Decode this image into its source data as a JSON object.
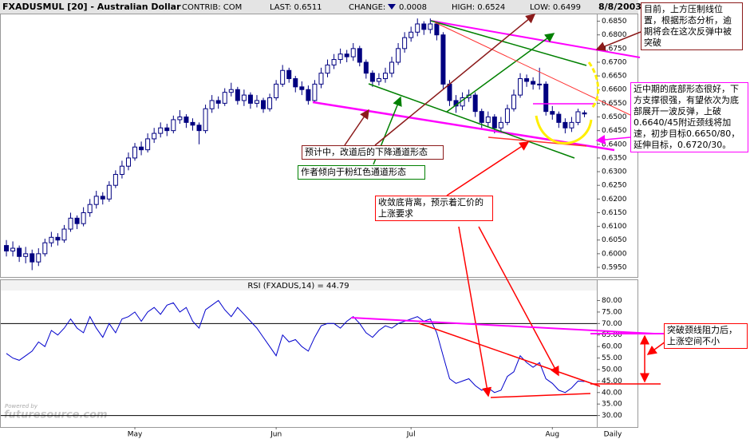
{
  "header": {
    "contrib": "CONTRIB: COM",
    "last": "LAST: 0.6511",
    "change_label": "CHANGE:",
    "change": "0.0008",
    "high": "HIGH: 0.6524",
    "low": "LOW: 0.6499",
    "date": "8/8/2003"
  },
  "watermark_caption": "Powered by",
  "watermark": "futuresource.com",
  "annotations": {
    "top_right": "目前，上方压制线位置，根据形态分析，逾期将会在这次反弹中被突破",
    "bottom_pattern": "近中期的底部形态很好，下方支撑很强，有望依次为底部展开一波反弹，上破0.6640/45附近颈线将加速，初步目标0.6650/80，延伸目标，0.6720/30。",
    "channel_forecast": "预计中，改道后的下降通道形态",
    "author_preference": "作者倾向于粉红色通道形态",
    "divergence": "收敛底背离，预示着汇价的上涨要求",
    "breakout": "突破颈线阻力后，上涨空间不小"
  },
  "chart_data": [
    {
      "type": "candlestick",
      "title": "FXADUSMUL [20] - Australian Dollar",
      "color": "#000080",
      "up_fill": "#ffffff",
      "open": [
        0.603,
        0.601,
        0.602,
        0.599,
        0.6,
        0.597,
        0.6,
        0.604,
        0.606,
        0.605,
        0.609,
        0.613,
        0.611,
        0.615,
        0.618,
        0.621,
        0.62,
        0.625,
        0.629,
        0.632,
        0.635,
        0.639,
        0.638,
        0.642,
        0.644,
        0.646,
        0.645,
        0.649,
        0.65,
        0.648,
        0.647,
        0.645,
        0.653,
        0.656,
        0.655,
        0.659,
        0.66,
        0.656,
        0.658,
        0.655,
        0.656,
        0.653,
        0.657,
        0.662,
        0.667,
        0.664,
        0.661,
        0.66,
        0.656,
        0.662,
        0.666,
        0.669,
        0.671,
        0.673,
        0.672,
        0.675,
        0.67,
        0.666,
        0.663,
        0.664,
        0.666,
        0.67,
        0.675,
        0.679,
        0.681,
        0.684,
        0.682,
        0.684,
        0.68,
        0.662,
        0.656,
        0.654,
        0.657,
        0.658,
        0.652,
        0.648,
        0.65,
        0.646,
        0.648,
        0.653,
        0.658,
        0.664,
        0.663,
        0.662,
        0.662,
        0.652,
        0.651,
        0.648,
        0.646,
        0.648,
        0.6515
      ],
      "high": [
        0.605,
        0.6045,
        0.603,
        0.6025,
        0.6015,
        0.602,
        0.6055,
        0.608,
        0.6075,
        0.6105,
        0.615,
        0.614,
        0.617,
        0.62,
        0.623,
        0.6225,
        0.6265,
        0.6305,
        0.634,
        0.637,
        0.6405,
        0.641,
        0.644,
        0.646,
        0.648,
        0.6475,
        0.6505,
        0.6525,
        0.651,
        0.6495,
        0.648,
        0.6545,
        0.658,
        0.6575,
        0.6605,
        0.6625,
        0.661,
        0.66,
        0.659,
        0.658,
        0.657,
        0.6585,
        0.6635,
        0.669,
        0.668,
        0.665,
        0.663,
        0.6615,
        0.6635,
        0.668,
        0.671,
        0.673,
        0.675,
        0.6745,
        0.677,
        0.676,
        0.671,
        0.667,
        0.666,
        0.668,
        0.672,
        0.677,
        0.681,
        0.683,
        0.686,
        0.685,
        0.686,
        0.685,
        0.681,
        0.6635,
        0.658,
        0.659,
        0.66,
        0.659,
        0.653,
        0.652,
        0.651,
        0.65,
        0.6545,
        0.66,
        0.666,
        0.6655,
        0.6645,
        0.668,
        0.663,
        0.654,
        0.652,
        0.6495,
        0.65,
        0.653,
        0.6524
      ],
      "low": [
        0.599,
        0.599,
        0.597,
        0.5965,
        0.594,
        0.5955,
        0.599,
        0.6025,
        0.603,
        0.604,
        0.608,
        0.609,
        0.61,
        0.6135,
        0.6165,
        0.618,
        0.619,
        0.624,
        0.6275,
        0.6305,
        0.634,
        0.636,
        0.637,
        0.6405,
        0.6425,
        0.643,
        0.644,
        0.6475,
        0.646,
        0.645,
        0.64,
        0.644,
        0.6515,
        0.653,
        0.654,
        0.6575,
        0.6545,
        0.654,
        0.653,
        0.6535,
        0.6515,
        0.652,
        0.656,
        0.661,
        0.6625,
        0.659,
        0.658,
        0.6545,
        0.655,
        0.6605,
        0.6645,
        0.6675,
        0.6695,
        0.67,
        0.6705,
        0.6685,
        0.664,
        0.661,
        0.6615,
        0.6625,
        0.6645,
        0.669,
        0.6735,
        0.6775,
        0.6795,
        0.68,
        0.6805,
        0.678,
        0.66,
        0.654,
        0.6515,
        0.6525,
        0.6555,
        0.65,
        0.646,
        0.6465,
        0.644,
        0.6445,
        0.647,
        0.652,
        0.657,
        0.661,
        0.66,
        0.66,
        0.6505,
        0.649,
        0.646,
        0.644,
        0.6445,
        0.647,
        0.6499
      ],
      "close": [
        0.601,
        0.602,
        0.599,
        0.6,
        0.597,
        0.6,
        0.604,
        0.606,
        0.605,
        0.609,
        0.613,
        0.611,
        0.615,
        0.618,
        0.621,
        0.62,
        0.625,
        0.629,
        0.632,
        0.635,
        0.639,
        0.638,
        0.642,
        0.644,
        0.646,
        0.645,
        0.649,
        0.65,
        0.648,
        0.647,
        0.645,
        0.653,
        0.656,
        0.655,
        0.659,
        0.66,
        0.656,
        0.658,
        0.655,
        0.656,
        0.653,
        0.657,
        0.662,
        0.667,
        0.664,
        0.661,
        0.66,
        0.656,
        0.662,
        0.666,
        0.669,
        0.671,
        0.673,
        0.672,
        0.675,
        0.67,
        0.666,
        0.663,
        0.664,
        0.666,
        0.67,
        0.675,
        0.679,
        0.681,
        0.684,
        0.682,
        0.684,
        0.68,
        0.662,
        0.656,
        0.654,
        0.657,
        0.658,
        0.652,
        0.648,
        0.65,
        0.646,
        0.648,
        0.653,
        0.658,
        0.664,
        0.663,
        0.662,
        0.662,
        0.652,
        0.651,
        0.648,
        0.646,
        0.648,
        0.6519,
        0.6511
      ],
      "ylim": [
        0.5915,
        0.6875
      ],
      "yticks": [
        {
          "value": 0.595,
          "label": "0.5950"
        },
        {
          "value": 0.6,
          "label": "0.6000"
        },
        {
          "value": 0.605,
          "label": "0.6050"
        },
        {
          "value": 0.61,
          "label": "0.6100"
        },
        {
          "value": 0.615,
          "label": "0.6150"
        },
        {
          "value": 0.62,
          "label": "0.6200"
        },
        {
          "value": 0.625,
          "label": "0.6250"
        },
        {
          "value": 0.63,
          "label": "0.6300"
        },
        {
          "value": 0.635,
          "label": "0.6350"
        },
        {
          "value": 0.64,
          "label": "0.6400"
        },
        {
          "value": 0.645,
          "label": "0.6450"
        },
        {
          "value": 0.65,
          "label": "0.6500"
        },
        {
          "value": 0.655,
          "label": "0.6550"
        },
        {
          "value": 0.66,
          "label": "0.6600"
        },
        {
          "value": 0.665,
          "label": "0.6650"
        },
        {
          "value": 0.67,
          "label": "0.6700"
        },
        {
          "value": 0.675,
          "label": "0.6750"
        },
        {
          "value": 0.68,
          "label": "0.6800"
        },
        {
          "value": 0.685,
          "label": "0.6850"
        }
      ]
    },
    {
      "type": "line",
      "title": "RSI (FXADUS,14) = 44.79",
      "x_label": "Daily",
      "categories": [
        null,
        null,
        null,
        null,
        null,
        null,
        null,
        null,
        null,
        null,
        null,
        null,
        null,
        null,
        null,
        null,
        null,
        null,
        null,
        null,
        "May",
        null,
        null,
        null,
        null,
        null,
        null,
        null,
        null,
        null,
        null,
        null,
        null,
        null,
        null,
        null,
        null,
        null,
        null,
        null,
        null,
        null,
        "Jun",
        null,
        null,
        null,
        null,
        null,
        null,
        null,
        null,
        null,
        null,
        null,
        null,
        null,
        null,
        null,
        null,
        null,
        null,
        null,
        null,
        "Jul",
        null,
        null,
        null,
        null,
        null,
        null,
        null,
        null,
        null,
        null,
        null,
        null,
        null,
        null,
        null,
        null,
        null,
        null,
        null,
        null,
        null,
        "Aug",
        null,
        null,
        null,
        null,
        null
      ],
      "series": [
        {
          "color": "#0000cc",
          "values": [
            57,
            55,
            54,
            56,
            58,
            62,
            60,
            67,
            65,
            68,
            72,
            68,
            66,
            73,
            68,
            64,
            70,
            66,
            72,
            73,
            75,
            71,
            75,
            77,
            74,
            78,
            79,
            75,
            77,
            71,
            68,
            76,
            78,
            80,
            76,
            73,
            77,
            74,
            71,
            68,
            64,
            60,
            56,
            65,
            62,
            63,
            60,
            58,
            64,
            69,
            70,
            70,
            68,
            71,
            73,
            70,
            66,
            64,
            67,
            69,
            68,
            70,
            71,
            72,
            73,
            71,
            72,
            66,
            56,
            46,
            44,
            45,
            46,
            43,
            41,
            42,
            40,
            41,
            47,
            49,
            56,
            53,
            51,
            53,
            46,
            44,
            41,
            40,
            42,
            45,
            44.79
          ]
        }
      ],
      "ref_lines": [
        70,
        30
      ],
      "ref_color": "#000000",
      "ylim": [
        25,
        84
      ],
      "yticks": [
        {
          "value": 30,
          "label": "30.00"
        },
        {
          "value": 35,
          "label": "35.00"
        },
        {
          "value": 40,
          "label": "40.00"
        },
        {
          "value": 45,
          "label": "45.00"
        },
        {
          "value": 50,
          "label": "50.00"
        },
        {
          "value": 55,
          "label": "55.00"
        },
        {
          "value": 60,
          "label": "60.00"
        },
        {
          "value": 65,
          "label": "65.00"
        },
        {
          "value": 70,
          "label": "70.00"
        },
        {
          "value": 75,
          "label": "75.00"
        },
        {
          "value": 80,
          "label": "80.00"
        }
      ]
    }
  ]
}
